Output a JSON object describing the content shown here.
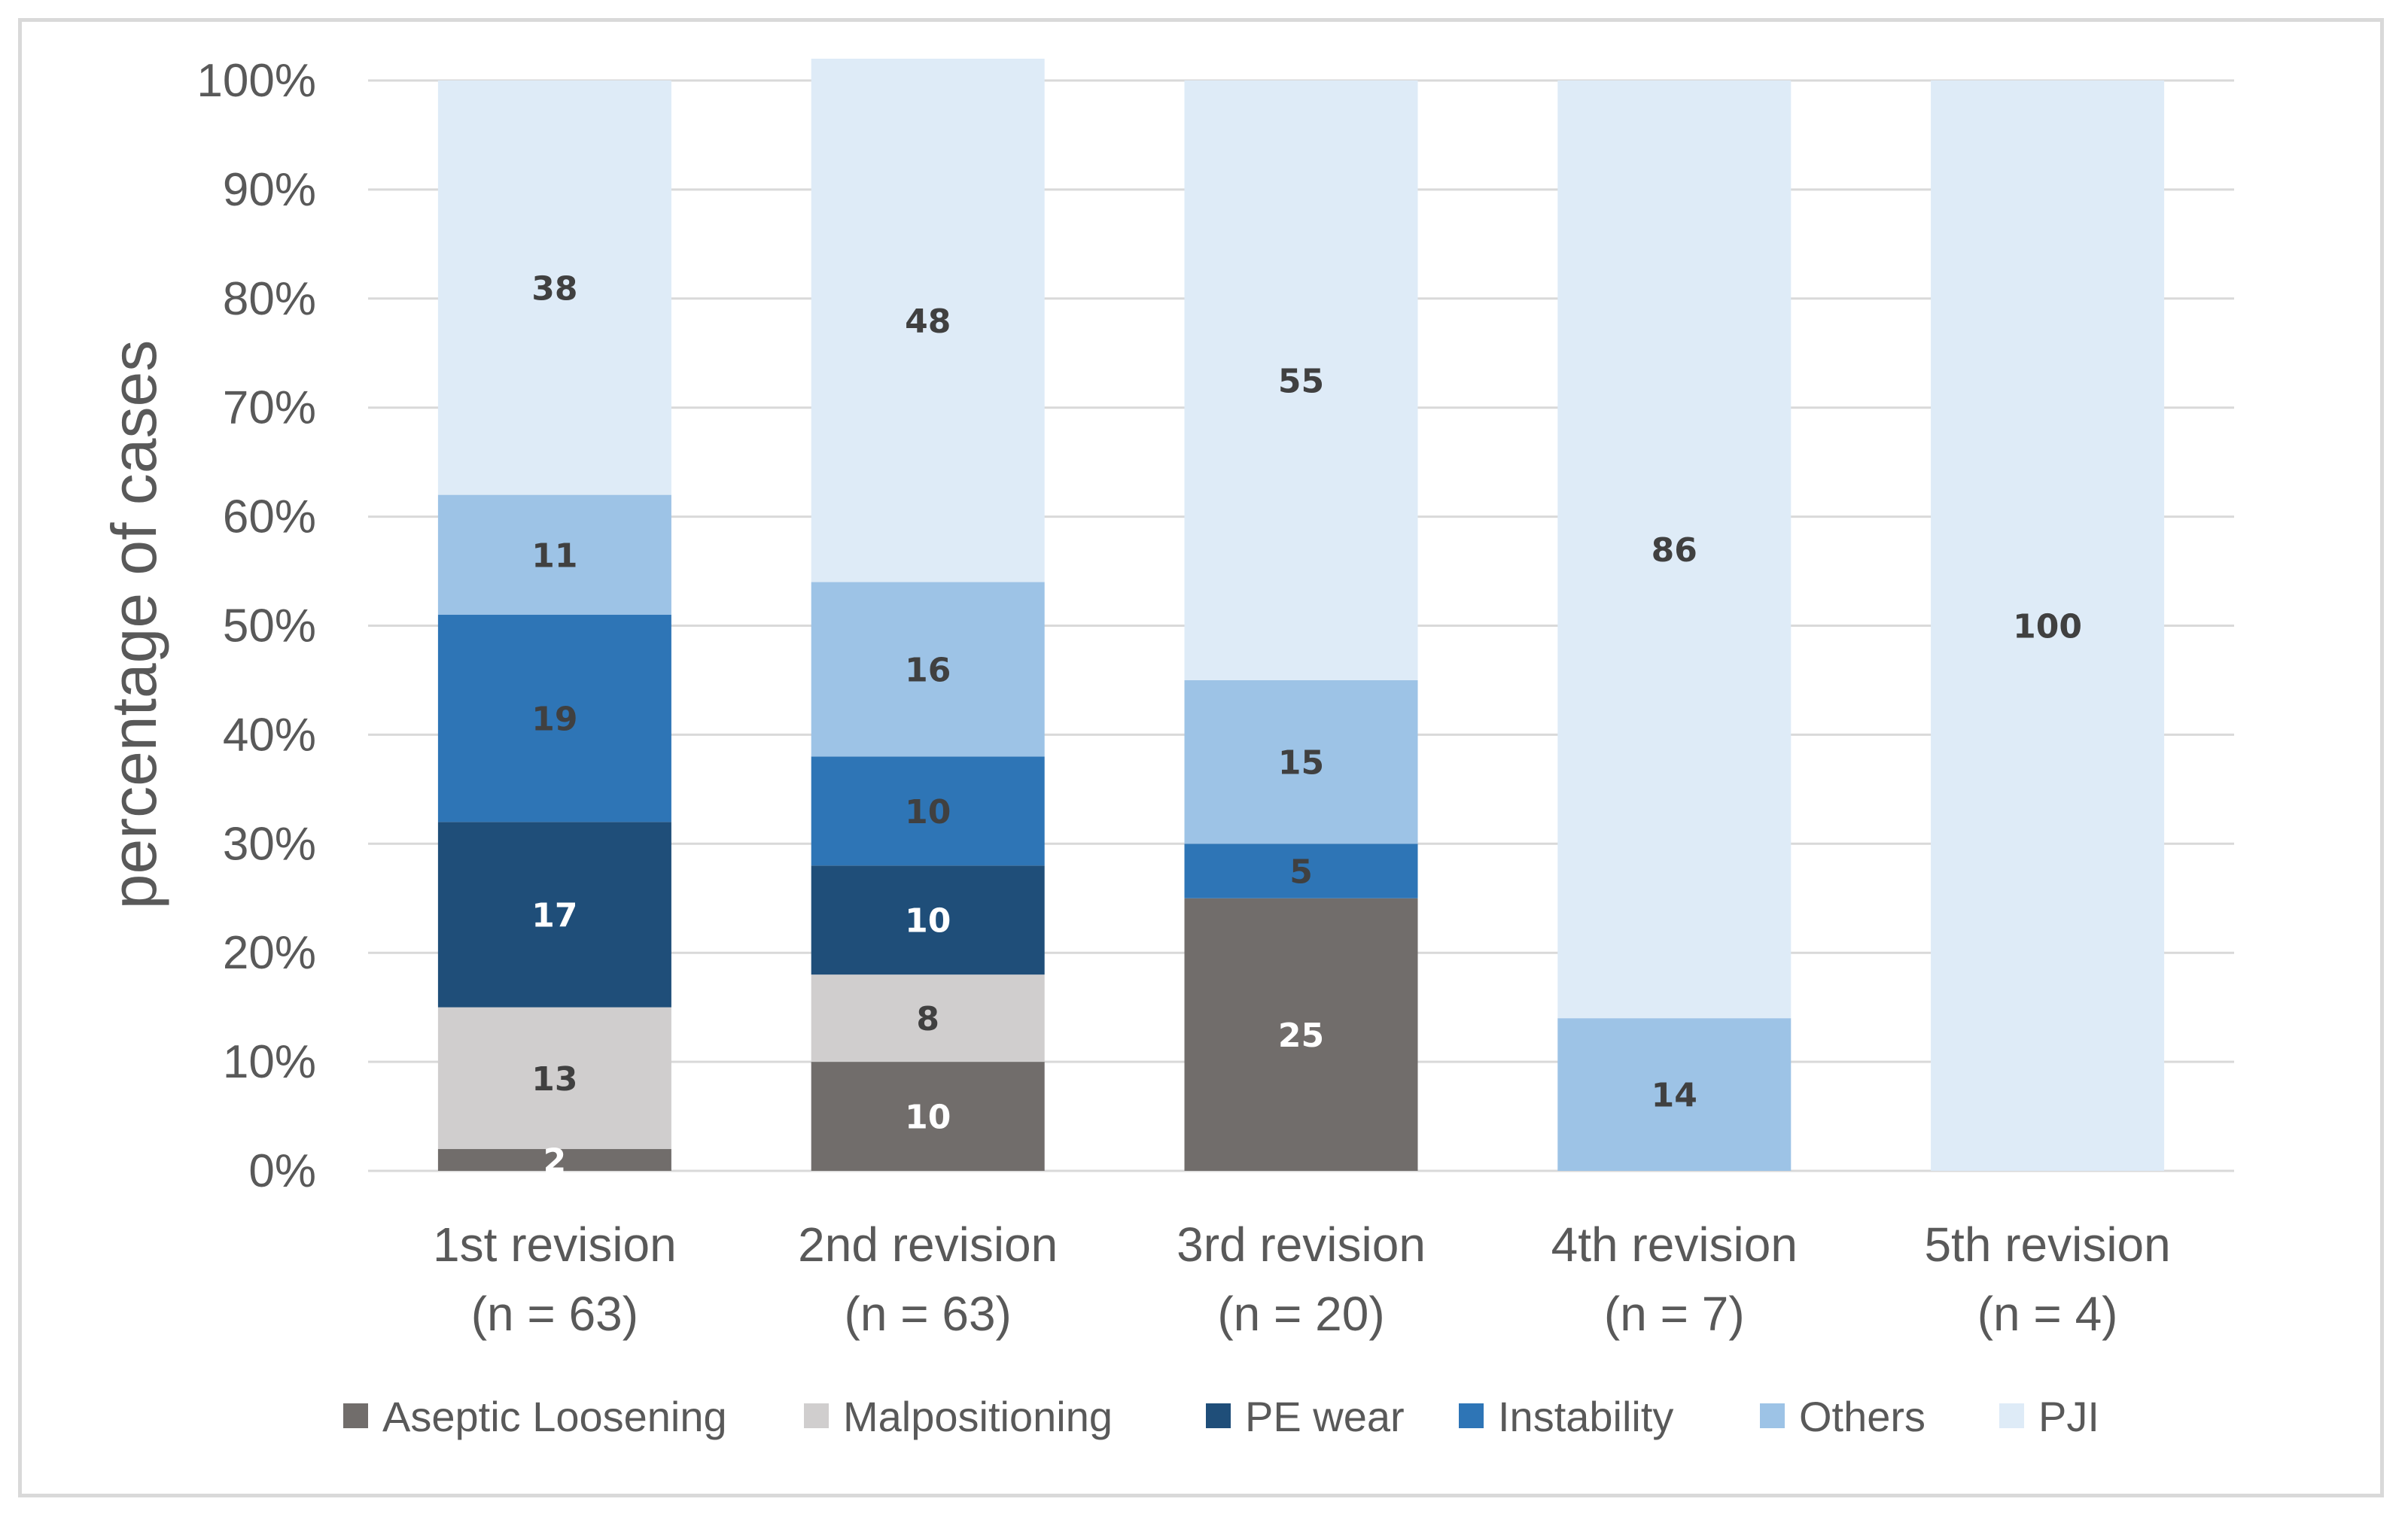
{
  "chart_data": {
    "type": "bar",
    "stacked": true,
    "percent_stacked": true,
    "title": "",
    "xlabel": "",
    "ylabel": "percentage of cases",
    "ylim": [
      0,
      100
    ],
    "ytick_labels": [
      "0%",
      "10%",
      "20%",
      "30%",
      "40%",
      "50%",
      "60%",
      "70%",
      "80%",
      "90%",
      "100%"
    ],
    "grid": true,
    "legend_position": "bottom",
    "categories": [
      [
        "1st revision",
        "(n = 63)"
      ],
      [
        "2nd revision",
        "(n = 63)"
      ],
      [
        "3rd revision",
        "(n = 20)"
      ],
      [
        "4th revision",
        "(n = 7)"
      ],
      [
        "5th revision",
        "(n = 4)"
      ]
    ],
    "series": [
      {
        "name": "Aseptic Loosening",
        "color": "#716d6b",
        "label_color": "#ffffff",
        "values": [
          2,
          10,
          25,
          0,
          0
        ]
      },
      {
        "name": "Malpositioning",
        "color": "#d0cece",
        "label_color": "#404040",
        "values": [
          13,
          8,
          0,
          0,
          0
        ]
      },
      {
        "name": "PE wear",
        "color": "#1f4e79",
        "label_color": "#ffffff",
        "values": [
          17,
          10,
          0,
          0,
          0
        ]
      },
      {
        "name": "Instability",
        "color": "#2e75b6",
        "label_color": "#404040",
        "values": [
          19,
          10,
          5,
          0,
          0
        ]
      },
      {
        "name": "Others",
        "color": "#9dc3e6",
        "label_color": "#404040",
        "values": [
          11,
          16,
          15,
          14,
          0
        ]
      },
      {
        "name": "PJI",
        "color": "#deebf7",
        "label_color": "#404040",
        "values": [
          38,
          48,
          55,
          86,
          100
        ]
      }
    ]
  }
}
